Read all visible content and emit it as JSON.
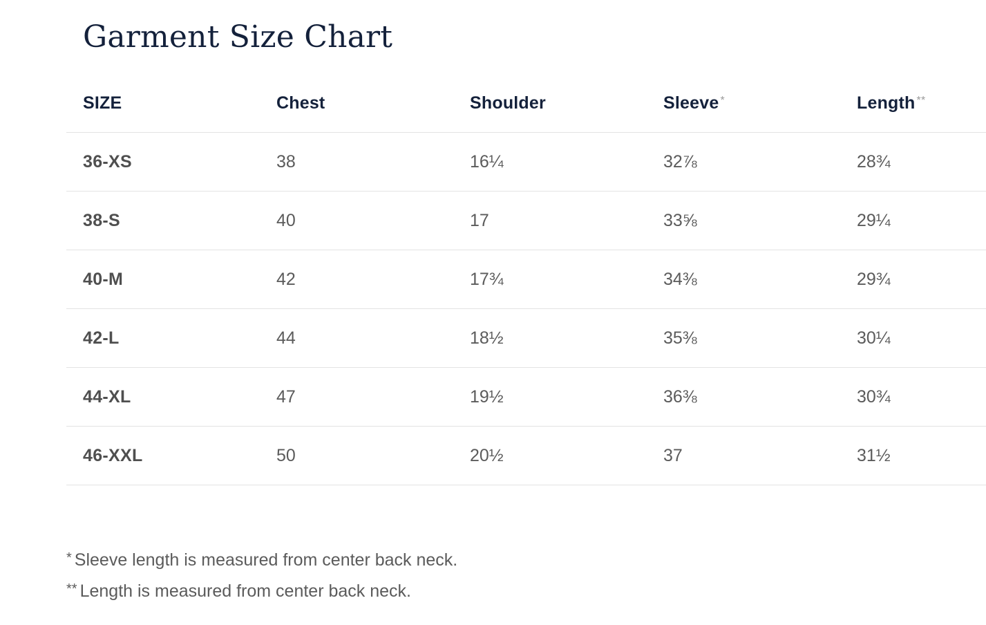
{
  "title": "Garment Size Chart",
  "table": {
    "headers": [
      {
        "label": "SIZE",
        "mark": ""
      },
      {
        "label": "Chest",
        "mark": ""
      },
      {
        "label": "Shoulder",
        "mark": ""
      },
      {
        "label": "Sleeve",
        "mark": "*"
      },
      {
        "label": "Length",
        "mark": "**"
      }
    ],
    "rows": [
      {
        "size": "36-XS",
        "chest": "38",
        "shoulder": "16¼",
        "sleeve": "32⅞",
        "length": "28¾"
      },
      {
        "size": "38-S",
        "chest": "40",
        "shoulder": "17",
        "sleeve": "33⅝",
        "length": "29¼"
      },
      {
        "size": "40-M",
        "chest": "42",
        "shoulder": "17¾",
        "sleeve": "34⅜",
        "length": "29¾"
      },
      {
        "size": "42-L",
        "chest": "44",
        "shoulder": "18½",
        "sleeve": "35⅜",
        "length": "30¼"
      },
      {
        "size": "44-XL",
        "chest": "47",
        "shoulder": "19½",
        "sleeve": "36⅜",
        "length": "30¾"
      },
      {
        "size": "46-XXL",
        "chest": "50",
        "shoulder": "20½",
        "sleeve": "37",
        "length": "31½"
      }
    ]
  },
  "notes": [
    {
      "mark": "*",
      "text": "Sleeve length is measured from center back neck."
    },
    {
      "mark": "**",
      "text": "Length is measured from center back neck."
    }
  ],
  "colors": {
    "heading": "#14213b",
    "body_text": "#5b5b5b",
    "divider": "#e3e3e3"
  }
}
